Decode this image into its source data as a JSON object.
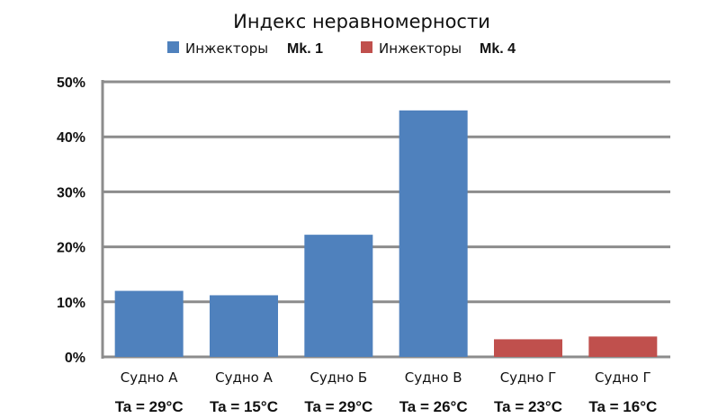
{
  "chart_data": {
    "type": "bar",
    "title": "Индекс неравномерности",
    "categories": [
      "Судно А",
      "Судно А",
      "Судно Б",
      "Судно В",
      "Судно Г",
      "Судно Г"
    ],
    "subcategories": [
      "Ta = 29°C",
      "Ta = 15°C",
      "Ta = 29°C",
      "Ta = 26°C",
      "Ta = 23°C",
      "Ta = 16°C"
    ],
    "values": [
      12,
      11.2,
      22.2,
      44.8,
      3.2,
      3.7
    ],
    "series_index": [
      0,
      0,
      0,
      0,
      1,
      1
    ],
    "series": [
      {
        "name": "Инжекторы",
        "suffix": "Mk. 1",
        "color": "#4f81bd"
      },
      {
        "name": "Инжекторы",
        "suffix": "Mk. 4",
        "color": "#c0504d"
      }
    ],
    "yticks": [
      "0%",
      "10%",
      "20%",
      "30%",
      "40%",
      "50%"
    ],
    "ylim": [
      0,
      50
    ],
    "grid": true,
    "legend_position": "top"
  }
}
